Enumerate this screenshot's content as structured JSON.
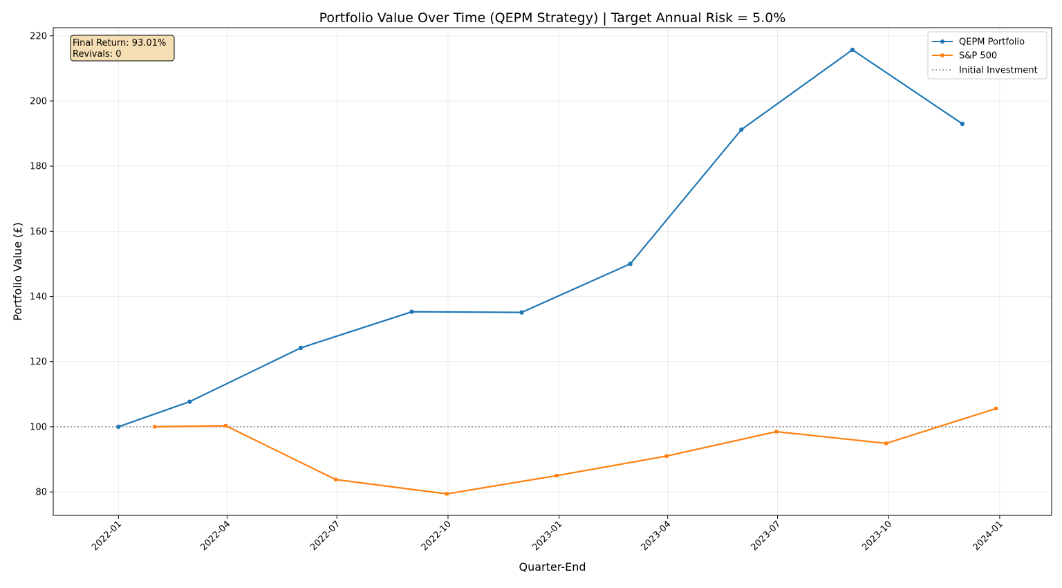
{
  "chart_data": {
    "type": "line",
    "title": "Portfolio Value Over Time (QEPM Strategy) | Target Annual Risk = 5.0%",
    "xlabel": "Quarter-End",
    "ylabel": "Portfolio Value (£)",
    "x_type": "date",
    "xlim": [
      "2021-11-08",
      "2024-02-13"
    ],
    "ylim": [
      72.8,
      222.5
    ],
    "x_ticks": [
      "2022-01",
      "2022-04",
      "2022-07",
      "2022-10",
      "2023-01",
      "2023-04",
      "2023-07",
      "2023-10",
      "2024-01"
    ],
    "y_ticks": [
      80,
      100,
      120,
      140,
      160,
      180,
      200,
      220
    ],
    "grid": true,
    "legend_position": "top-right",
    "series": [
      {
        "name": "QEPM Portfolio",
        "color": "#1f77b4",
        "marker": "circle",
        "points": [
          {
            "x": "2022-01-01",
            "y": 100.0
          },
          {
            "x": "2022-03-01",
            "y": 107.7
          },
          {
            "x": "2022-06-01",
            "y": 124.2
          },
          {
            "x": "2022-09-01",
            "y": 135.3
          },
          {
            "x": "2022-12-01",
            "y": 135.1
          },
          {
            "x": "2023-03-01",
            "y": 150.0
          },
          {
            "x": "2023-06-01",
            "y": 191.2
          },
          {
            "x": "2023-09-01",
            "y": 215.7
          },
          {
            "x": "2023-12-01",
            "y": 193.0
          }
        ]
      },
      {
        "name": "S&P 500",
        "color": "#ff7f0e",
        "marker": "square",
        "points": [
          {
            "x": "2022-01-31",
            "y": 100.0
          },
          {
            "x": "2022-03-31",
            "y": 100.3
          },
          {
            "x": "2022-06-30",
            "y": 83.8
          },
          {
            "x": "2022-09-30",
            "y": 79.4
          },
          {
            "x": "2022-12-30",
            "y": 85.0
          },
          {
            "x": "2023-03-31",
            "y": 91.0
          },
          {
            "x": "2023-06-30",
            "y": 98.5
          },
          {
            "x": "2023-09-29",
            "y": 94.9
          },
          {
            "x": "2023-12-29",
            "y": 105.6
          }
        ]
      }
    ],
    "reference_line": {
      "name": "Initial Investment",
      "y": 100,
      "color": "#808080",
      "style": "dotted"
    },
    "annotation": {
      "lines": [
        "Final Return: 93.01%",
        "Revivals: 0"
      ],
      "position": "top-left",
      "background": "#f5deb3"
    }
  }
}
